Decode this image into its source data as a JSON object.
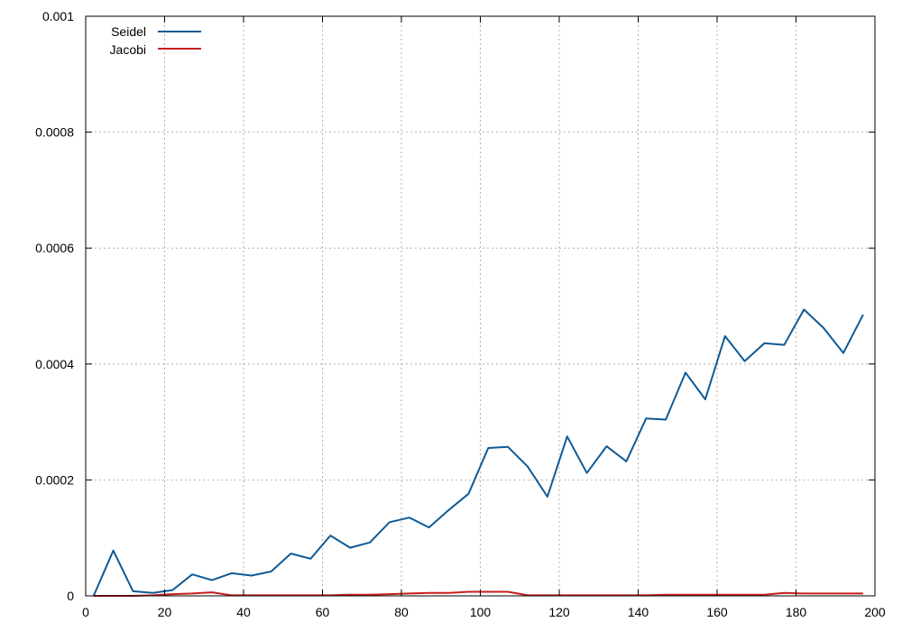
{
  "chart_data": {
    "type": "line",
    "xlim": [
      0,
      200
    ],
    "ylim": [
      0,
      0.001
    ],
    "x_ticks": [
      0,
      20,
      40,
      60,
      80,
      100,
      120,
      140,
      160,
      180,
      200
    ],
    "y_ticks": [
      0,
      0.0002,
      0.0004,
      0.0006,
      0.0008,
      0.001
    ],
    "x_tick_labels": [
      "0",
      "20",
      "40",
      "60",
      "80",
      "100",
      "120",
      "140",
      "160",
      "180",
      "200"
    ],
    "y_tick_labels": [
      "0",
      "0.0002",
      "0.0004",
      "0.0006",
      "0.0008",
      "0.001"
    ],
    "grid": true,
    "legend_position": "top-left",
    "x": [
      2,
      7,
      12,
      17,
      22,
      27,
      32,
      37,
      42,
      47,
      52,
      57,
      62,
      67,
      72,
      77,
      82,
      87,
      92,
      97,
      102,
      107,
      112,
      117,
      122,
      127,
      132,
      137,
      142,
      147,
      152,
      157,
      162,
      167,
      172,
      177,
      182,
      187,
      192,
      197
    ],
    "series": [
      {
        "name": "Seidel",
        "color": "#0e5a96",
        "values": [
          0.0,
          7.8e-05,
          8e-06,
          5e-06,
          1e-05,
          3.7e-05,
          2.7e-05,
          3.9e-05,
          3.5e-05,
          4.2e-05,
          7.3e-05,
          6.4e-05,
          0.000104,
          8.3e-05,
          9.2e-05,
          0.000127,
          0.000135,
          0.000118,
          0.000148,
          0.000176,
          0.000255,
          0.000257,
          0.000223,
          0.000171,
          0.000275,
          0.000212,
          0.000258,
          0.000232,
          0.000306,
          0.000304,
          0.000385,
          0.000339,
          0.000448,
          0.000405,
          0.000436,
          0.000433,
          0.000494,
          0.000462,
          0.000419,
          0.000485
        ]
      },
      {
        "name": "Jacobi",
        "color": "#c81e1e",
        "values": [
          0.0,
          0.0,
          0.0,
          1e-06,
          3e-06,
          4e-06,
          6e-06,
          1e-06,
          1e-06,
          1e-06,
          1e-06,
          1e-06,
          1e-06,
          2e-06,
          2e-06,
          3e-06,
          4e-06,
          5e-06,
          5e-06,
          7e-06,
          7e-06,
          7e-06,
          1e-06,
          1e-06,
          1e-06,
          1e-06,
          1e-06,
          1e-06,
          1e-06,
          2e-06,
          2e-06,
          2e-06,
          2e-06,
          2e-06,
          2e-06,
          5e-06,
          4e-06,
          4e-06,
          4e-06,
          4e-06
        ]
      }
    ]
  }
}
